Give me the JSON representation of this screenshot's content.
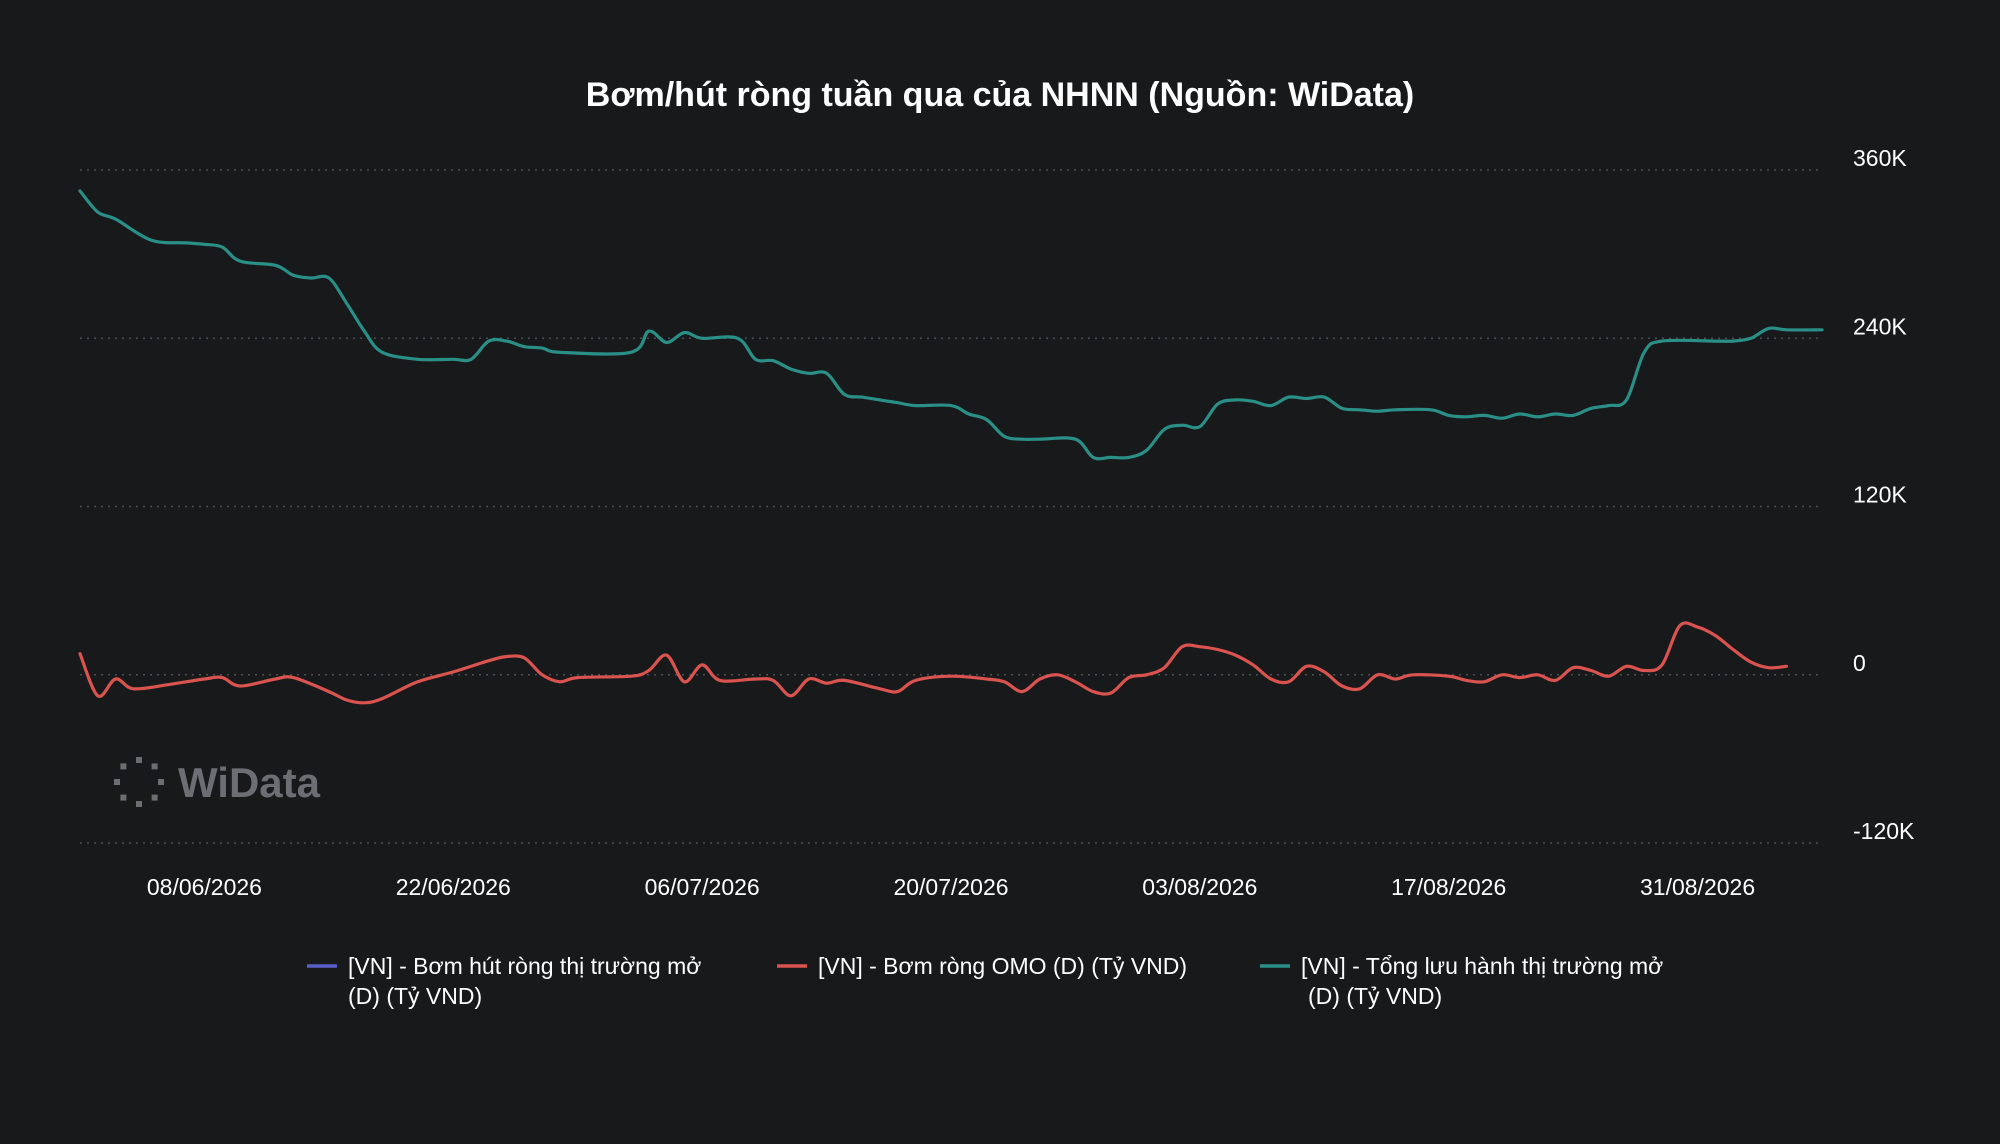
{
  "chart_data": {
    "type": "line",
    "title": "Bơm/hút ròng tuần qua của NHNN (Nguồn: WiData)",
    "watermark": "WiData",
    "xlabel": "",
    "ylabel": "",
    "x_ticks": [
      "08/06/2026",
      "22/06/2026",
      "06/07/2026",
      "20/07/2026",
      "03/08/2026",
      "17/08/2026",
      "31/08/2026"
    ],
    "y_ticks": [
      {
        "value": 360000,
        "label": "360K"
      },
      {
        "value": 240000,
        "label": "240K"
      },
      {
        "value": 120000,
        "label": "120K"
      },
      {
        "value": 0,
        "label": "0"
      },
      {
        "value": -120000,
        "label": "-120K"
      }
    ],
    "xlim": [
      "2026-06-01",
      "2026-09-07"
    ],
    "ylim": [
      -120000,
      360000
    ],
    "grid": "horizontal dotted",
    "legend_position": "bottom",
    "colors": {
      "background": "#18191b",
      "grid": "#4a4d52",
      "series_1": "#5a5fc8",
      "series_2": "#d9534f",
      "series_3": "#2a8f86",
      "watermark": "#6b6e72"
    },
    "series": [
      {
        "name": "[VN] - Bơm hút ròng thị trường mở (D) (Tỷ VND)",
        "legend_lines": [
          "[VN] - Bơm hút ròng thị trường mở",
          "(D) (Tỷ VND)"
        ],
        "color": "#5a5fc8",
        "points": []
      },
      {
        "name": "[VN] - Bơm ròng OMO (D) (Tỷ VND)",
        "legend_lines": [
          "[VN] - Bơm ròng OMO (D) (Tỷ VND)"
        ],
        "color": "#d9534f",
        "points": [
          [
            "2026-06-01",
            15000
          ],
          [
            "2026-06-02",
            -15000
          ],
          [
            "2026-06-03",
            -3000
          ],
          [
            "2026-06-04",
            -10000
          ],
          [
            "2026-06-06",
            -7000
          ],
          [
            "2026-06-08",
            -3000
          ],
          [
            "2026-06-09",
            -2000
          ],
          [
            "2026-06-10",
            -8000
          ],
          [
            "2026-06-12",
            -3000
          ],
          [
            "2026-06-13",
            -2000
          ],
          [
            "2026-06-15",
            -12000
          ],
          [
            "2026-06-16",
            -18000
          ],
          [
            "2026-06-17",
            -20000
          ],
          [
            "2026-06-18",
            -17000
          ],
          [
            "2026-06-20",
            -5000
          ],
          [
            "2026-06-22",
            2000
          ],
          [
            "2026-06-24",
            10000
          ],
          [
            "2026-06-25",
            13000
          ],
          [
            "2026-06-26",
            12000
          ],
          [
            "2026-06-27",
            0
          ],
          [
            "2026-06-28",
            -5000
          ],
          [
            "2026-06-29",
            -2000
          ],
          [
            "2026-07-02",
            -1000
          ],
          [
            "2026-07-03",
            3000
          ],
          [
            "2026-07-04",
            14000
          ],
          [
            "2026-07-05",
            -5000
          ],
          [
            "2026-07-06",
            7000
          ],
          [
            "2026-07-07",
            -4000
          ],
          [
            "2026-07-09",
            -3000
          ],
          [
            "2026-07-10",
            -4000
          ],
          [
            "2026-07-11",
            -15000
          ],
          [
            "2026-07-12",
            -3000
          ],
          [
            "2026-07-13",
            -6000
          ],
          [
            "2026-07-14",
            -4000
          ],
          [
            "2026-07-16",
            -10000
          ],
          [
            "2026-07-17",
            -12000
          ],
          [
            "2026-07-18",
            -4000
          ],
          [
            "2026-07-20",
            -1000
          ],
          [
            "2026-07-22",
            -3000
          ],
          [
            "2026-07-23",
            -5000
          ],
          [
            "2026-07-24",
            -12000
          ],
          [
            "2026-07-25",
            -3000
          ],
          [
            "2026-07-26",
            0
          ],
          [
            "2026-07-27",
            -5000
          ],
          [
            "2026-07-28",
            -12000
          ],
          [
            "2026-07-29",
            -13000
          ],
          [
            "2026-07-30",
            -2000
          ],
          [
            "2026-07-31",
            0
          ],
          [
            "2026-08-01",
            5000
          ],
          [
            "2026-08-02",
            20000
          ],
          [
            "2026-08-03",
            20000
          ],
          [
            "2026-08-04",
            18000
          ],
          [
            "2026-08-05",
            14000
          ],
          [
            "2026-08-06",
            7000
          ],
          [
            "2026-08-07",
            -3000
          ],
          [
            "2026-08-08",
            -5000
          ],
          [
            "2026-08-09",
            6000
          ],
          [
            "2026-08-10",
            2000
          ],
          [
            "2026-08-11",
            -8000
          ],
          [
            "2026-08-12",
            -10000
          ],
          [
            "2026-08-13",
            0
          ],
          [
            "2026-08-14",
            -3000
          ],
          [
            "2026-08-15",
            0
          ],
          [
            "2026-08-17",
            -1000
          ],
          [
            "2026-08-18",
            -4000
          ],
          [
            "2026-08-19",
            -5000
          ],
          [
            "2026-08-20",
            0
          ],
          [
            "2026-08-21",
            -2000
          ],
          [
            "2026-08-22",
            0
          ],
          [
            "2026-08-23",
            -4000
          ],
          [
            "2026-08-24",
            5000
          ],
          [
            "2026-08-25",
            3000
          ],
          [
            "2026-08-26",
            -1000
          ],
          [
            "2026-08-27",
            6000
          ],
          [
            "2026-08-28",
            3000
          ],
          [
            "2026-08-29",
            7000
          ],
          [
            "2026-08-30",
            35000
          ],
          [
            "2026-08-31",
            34000
          ],
          [
            "2026-09-01",
            28000
          ],
          [
            "2026-09-02",
            18000
          ],
          [
            "2026-09-03",
            9000
          ],
          [
            "2026-09-04",
            5000
          ],
          [
            "2026-09-05",
            6000
          ]
        ]
      },
      {
        "name": "[VN] - Tổng lưu hành thị trường mở (D) (Tỷ VND)",
        "legend_lines": [
          "[VN] - Tổng lưu hành thị trường mở",
          "(D) (Tỷ VND)"
        ],
        "color": "#2a8f86",
        "points": [
          [
            "2026-06-01",
            345000
          ],
          [
            "2026-06-02",
            330000
          ],
          [
            "2026-06-03",
            325000
          ],
          [
            "2026-06-05",
            310000
          ],
          [
            "2026-06-07",
            308000
          ],
          [
            "2026-06-08",
            307000
          ],
          [
            "2026-06-09",
            305000
          ],
          [
            "2026-06-10",
            295000
          ],
          [
            "2026-06-12",
            292000
          ],
          [
            "2026-06-13",
            285000
          ],
          [
            "2026-06-14",
            283000
          ],
          [
            "2026-06-15",
            283000
          ],
          [
            "2026-06-16",
            265000
          ],
          [
            "2026-06-17",
            245000
          ],
          [
            "2026-06-18",
            230000
          ],
          [
            "2026-06-20",
            225000
          ],
          [
            "2026-06-22",
            225000
          ],
          [
            "2026-06-23",
            225000
          ],
          [
            "2026-06-24",
            238000
          ],
          [
            "2026-06-25",
            238000
          ],
          [
            "2026-06-26",
            234000
          ],
          [
            "2026-06-27",
            233000
          ],
          [
            "2026-06-28",
            230000
          ],
          [
            "2026-07-02",
            230000
          ],
          [
            "2026-07-03",
            245000
          ],
          [
            "2026-07-04",
            237000
          ],
          [
            "2026-07-05",
            244000
          ],
          [
            "2026-07-06",
            240000
          ],
          [
            "2026-07-08",
            240000
          ],
          [
            "2026-07-09",
            225000
          ],
          [
            "2026-07-10",
            224000
          ],
          [
            "2026-07-11",
            218000
          ],
          [
            "2026-07-12",
            215000
          ],
          [
            "2026-07-13",
            215000
          ],
          [
            "2026-07-14",
            200000
          ],
          [
            "2026-07-15",
            198000
          ],
          [
            "2026-07-16",
            196000
          ],
          [
            "2026-07-17",
            194000
          ],
          [
            "2026-07-18",
            192000
          ],
          [
            "2026-07-20",
            192000
          ],
          [
            "2026-07-21",
            186000
          ],
          [
            "2026-07-22",
            182000
          ],
          [
            "2026-07-23",
            170000
          ],
          [
            "2026-07-24",
            168000
          ],
          [
            "2026-07-25",
            168000
          ],
          [
            "2026-07-27",
            168000
          ],
          [
            "2026-07-28",
            155000
          ],
          [
            "2026-07-29",
            155000
          ],
          [
            "2026-07-30",
            155000
          ],
          [
            "2026-07-31",
            160000
          ],
          [
            "2026-08-01",
            175000
          ],
          [
            "2026-08-02",
            178000
          ],
          [
            "2026-08-03",
            177000
          ],
          [
            "2026-08-04",
            193000
          ],
          [
            "2026-08-05",
            196000
          ],
          [
            "2026-08-06",
            195000
          ],
          [
            "2026-08-07",
            192000
          ],
          [
            "2026-08-08",
            198000
          ],
          [
            "2026-08-09",
            197000
          ],
          [
            "2026-08-10",
            198000
          ],
          [
            "2026-08-11",
            190000
          ],
          [
            "2026-08-12",
            189000
          ],
          [
            "2026-08-13",
            188000
          ],
          [
            "2026-08-14",
            189000
          ],
          [
            "2026-08-16",
            189000
          ],
          [
            "2026-08-17",
            185000
          ],
          [
            "2026-08-18",
            184000
          ],
          [
            "2026-08-19",
            185000
          ],
          [
            "2026-08-20",
            183000
          ],
          [
            "2026-08-21",
            186000
          ],
          [
            "2026-08-22",
            184000
          ],
          [
            "2026-08-23",
            186000
          ],
          [
            "2026-08-24",
            185000
          ],
          [
            "2026-08-25",
            190000
          ],
          [
            "2026-08-26",
            192000
          ],
          [
            "2026-08-27",
            196000
          ],
          [
            "2026-08-28",
            230000
          ],
          [
            "2026-08-29",
            238000
          ],
          [
            "2026-09-01",
            238000
          ],
          [
            "2026-09-02",
            238000
          ],
          [
            "2026-09-03",
            240000
          ],
          [
            "2026-09-04",
            247000
          ],
          [
            "2026-09-05",
            246000
          ],
          [
            "2026-09-07",
            246000
          ]
        ]
      }
    ]
  }
}
